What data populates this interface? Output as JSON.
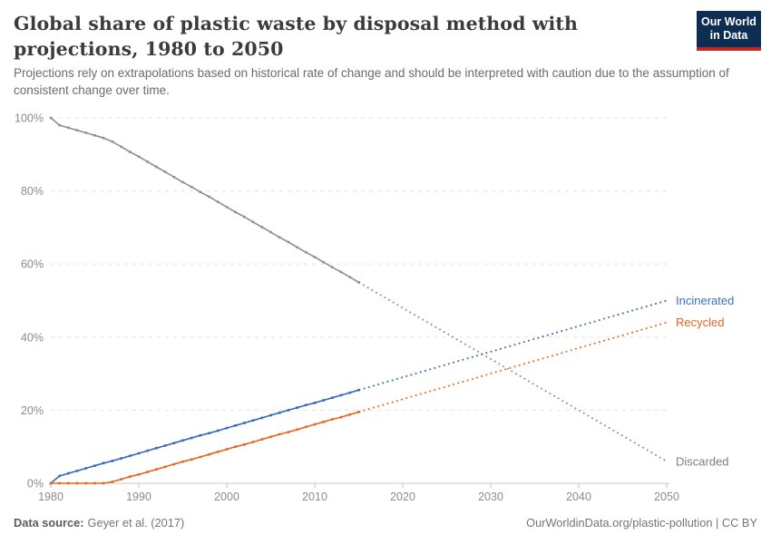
{
  "header": {
    "title": "Global share of plastic waste by disposal method with projections, 1980 to 2050",
    "subtitle": "Projections rely on extrapolations based on historical rate of change and should be interpreted with caution due to the assumption of consistent change over time.",
    "logo": {
      "line1": "Our World",
      "line2": "in Data",
      "bg": "#0d2d52",
      "stripe": "#c2281f"
    }
  },
  "footer": {
    "source_label": "Data source:",
    "source_value": "Geyer et al. (2017)",
    "right_text": "OurWorldinData.org/plastic-pollution | CC BY"
  },
  "chart_data": {
    "type": "line",
    "title": "Global share of plastic waste by disposal method with projections, 1980 to 2050",
    "xlabel": "",
    "ylabel": "",
    "xlim": [
      1980,
      2050
    ],
    "ylim": [
      0,
      100
    ],
    "x_ticks": [
      1980,
      1990,
      2000,
      2010,
      2020,
      2030,
      2040,
      2050
    ],
    "y_ticks": [
      0,
      20,
      40,
      60,
      80,
      100
    ],
    "y_tick_labels": [
      "0%",
      "20%",
      "40%",
      "60%",
      "80%",
      "100%"
    ],
    "grid": "dashed horizontal gridlines",
    "legend_position": "labels at right end of lines",
    "projection_style": "dotted",
    "axis_color": "#cbcbcb",
    "grid_color": "#e3e3e3",
    "tick_label_color": "#8b8b8b",
    "series": [
      {
        "name": "Discarded",
        "color": "#8f8f8f",
        "label_color": "#7f7f7f",
        "start_year": 1980,
        "historical": [
          100,
          98.0,
          97.3,
          96.6,
          95.9,
          95.2,
          94.5,
          93.5,
          92.1,
          90.7,
          89.4,
          88.0,
          86.6,
          85.2,
          83.8,
          82.4,
          81.1,
          79.7,
          78.4,
          77.0,
          75.6,
          74.2,
          72.9,
          71.5,
          70.1,
          68.7,
          67.3,
          66.0,
          64.6,
          63.2,
          61.9,
          60.5,
          59.1,
          57.8,
          56.4,
          55.0
        ],
        "projection": {
          "years": [
            2015,
            2050
          ],
          "values": [
            55.0,
            6.0
          ]
        }
      },
      {
        "name": "Incinerated",
        "color": "#3767b5",
        "label_color": "#3a6fc0",
        "start_year": 1980,
        "historical": [
          0,
          2.0,
          2.7,
          3.4,
          4.1,
          4.8,
          5.5,
          6.1,
          6.8,
          7.5,
          8.2,
          8.9,
          9.6,
          10.3,
          11.0,
          11.7,
          12.4,
          13.1,
          13.7,
          14.4,
          15.1,
          15.8,
          16.5,
          17.2,
          17.9,
          18.6,
          19.3,
          20.0,
          20.7,
          21.4,
          22.0,
          22.7,
          23.4,
          24.1,
          24.8,
          25.5
        ],
        "projection": {
          "years": [
            2015,
            2050
          ],
          "values": [
            25.5,
            50.0
          ]
        }
      },
      {
        "name": "Recycled",
        "color": "#e8641f",
        "label_color": "#e8641f",
        "start_year": 1980,
        "historical": [
          0,
          0,
          0,
          0,
          0,
          0,
          0,
          0.4,
          1.1,
          1.8,
          2.4,
          3.1,
          3.8,
          4.5,
          5.2,
          5.9,
          6.5,
          7.2,
          7.9,
          8.6,
          9.3,
          10.0,
          10.6,
          11.3,
          12.0,
          12.7,
          13.4,
          14.0,
          14.7,
          15.4,
          16.1,
          16.8,
          17.5,
          18.1,
          18.8,
          19.5
        ],
        "projection": {
          "years": [
            2015,
            2050
          ],
          "values": [
            19.5,
            44.0
          ]
        }
      }
    ]
  }
}
